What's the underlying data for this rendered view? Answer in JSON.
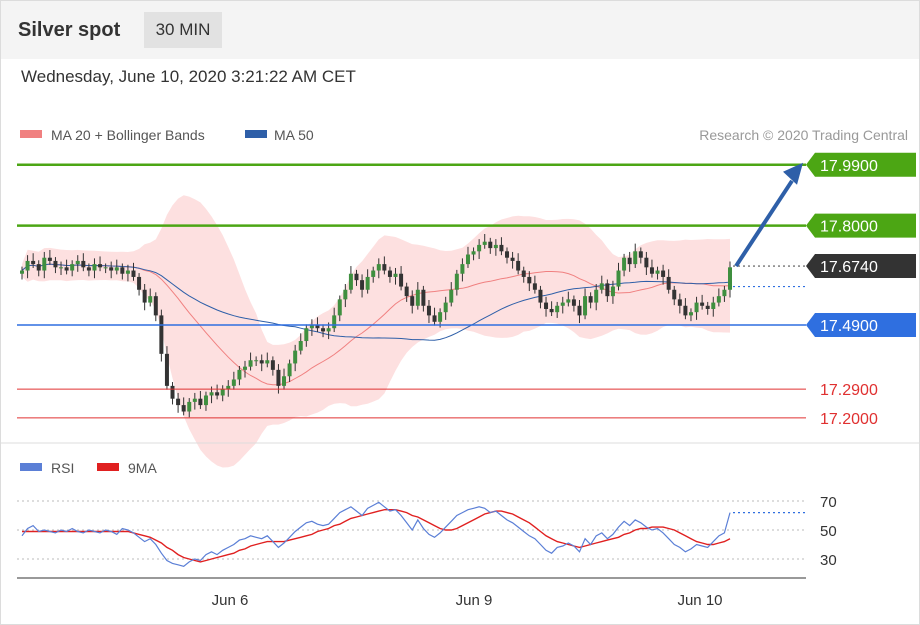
{
  "header": {
    "title": "Silver spot",
    "timeframe": "30 MIN",
    "datetime": "Wednesday, June 10, 2020 3:21:22 AM CET"
  },
  "legend": {
    "ma20": "MA 20 + Bollinger Bands",
    "ma50": "MA 50",
    "copyright": "Research © 2020 Trading Central",
    "ma20_color": "#f08080",
    "ma50_color": "#2e5fa8"
  },
  "rsi_legend": {
    "rsi": "RSI",
    "ma9": "9MA",
    "rsi_color": "#5b7fd6",
    "ma9_color": "#e02020"
  },
  "chart_data": [
    {
      "type": "candlestick",
      "title": "Silver spot",
      "ylim": [
        17.17,
        17.98
      ],
      "levels": [
        {
          "value": 17.99,
          "label": "17.9900",
          "color": "#4ca614",
          "kind": "resistance"
        },
        {
          "value": 17.8,
          "label": "17.8000",
          "color": "#4ca614",
          "kind": "resistance"
        },
        {
          "value": 17.674,
          "label": "17.6740",
          "color": "#333333",
          "kind": "current"
        },
        {
          "value": 17.49,
          "label": "17.4900",
          "color": "#2f6fe0",
          "kind": "pivot"
        },
        {
          "value": 17.29,
          "label": "17.2900",
          "color": "#e03030",
          "kind": "support"
        },
        {
          "value": 17.2,
          "label": "17.2000",
          "color": "#e03030",
          "kind": "support"
        }
      ],
      "projection": {
        "from": 17.674,
        "to": 17.99
      },
      "x_tick_labels": [
        "Jun 6",
        "Jun 9",
        "Jun 10"
      ],
      "close": [
        17.66,
        17.69,
        17.68,
        17.66,
        17.7,
        17.69,
        17.67,
        17.67,
        17.66,
        17.68,
        17.69,
        17.67,
        17.66,
        17.68,
        17.67,
        17.67,
        17.66,
        17.67,
        17.65,
        17.66,
        17.64,
        17.6,
        17.56,
        17.58,
        17.52,
        17.4,
        17.3,
        17.26,
        17.24,
        17.22,
        17.25,
        17.26,
        17.24,
        17.27,
        17.28,
        17.27,
        17.29,
        17.3,
        17.32,
        17.35,
        17.36,
        17.38,
        17.38,
        17.37,
        17.38,
        17.35,
        17.3,
        17.33,
        17.37,
        17.41,
        17.44,
        17.48,
        17.49,
        17.48,
        17.47,
        17.48,
        17.52,
        17.57,
        17.6,
        17.65,
        17.63,
        17.6,
        17.64,
        17.66,
        17.68,
        17.66,
        17.64,
        17.65,
        17.61,
        17.58,
        17.55,
        17.6,
        17.55,
        17.52,
        17.5,
        17.53,
        17.56,
        17.6,
        17.65,
        17.68,
        17.71,
        17.72,
        17.74,
        17.75,
        17.73,
        17.74,
        17.72,
        17.7,
        17.69,
        17.66,
        17.64,
        17.62,
        17.6,
        17.56,
        17.54,
        17.53,
        17.55,
        17.56,
        17.57,
        17.55,
        17.52,
        17.58,
        17.56,
        17.6,
        17.62,
        17.58,
        17.61,
        17.66,
        17.7,
        17.68,
        17.72,
        17.7,
        17.67,
        17.65,
        17.66,
        17.64,
        17.6,
        17.57,
        17.55,
        17.52,
        17.53,
        17.56,
        17.55,
        17.54,
        17.56,
        17.58,
        17.6,
        17.67
      ],
      "rsi": {
        "ylim": [
          20,
          80
        ],
        "ticks": [
          70,
          50,
          30
        ],
        "latest": 62,
        "rsi_values": [
          46,
          51,
          53,
          49,
          50,
          49,
          48,
          50,
          49,
          51,
          49,
          48,
          50,
          49,
          48,
          50,
          49,
          47,
          51,
          50,
          48,
          45,
          42,
          44,
          40,
          34,
          29,
          27,
          26,
          25,
          28,
          30,
          29,
          33,
          35,
          33,
          36,
          38,
          40,
          43,
          44,
          46,
          45,
          44,
          46,
          42,
          38,
          41,
          45,
          49,
          52,
          55,
          56,
          54,
          53,
          54,
          58,
          62,
          64,
          66,
          63,
          60,
          65,
          67,
          69,
          66,
          63,
          64,
          60,
          55,
          50,
          57,
          51,
          47,
          45,
          48,
          52,
          56,
          60,
          62,
          64,
          65,
          66,
          65,
          62,
          63,
          60,
          57,
          55,
          52,
          49,
          46,
          44,
          40,
          36,
          34,
          38,
          39,
          41,
          39,
          35,
          44,
          40,
          46,
          48,
          44,
          47,
          52,
          56,
          53,
          57,
          55,
          52,
          50,
          51,
          48,
          44,
          40,
          38,
          35,
          37,
          40,
          39,
          38,
          42,
          46,
          48,
          62
        ],
        "ma9_values": [
          49,
          49,
          49,
          49,
          49,
          49,
          49,
          49,
          49,
          49,
          49,
          49,
          49,
          49,
          49,
          49,
          49,
          49,
          49,
          49,
          48,
          47,
          46,
          45,
          43,
          41,
          38,
          36,
          33,
          31,
          30,
          29,
          28,
          29,
          30,
          31,
          32,
          33,
          34,
          36,
          37,
          39,
          40,
          41,
          42,
          42,
          42,
          42,
          43,
          44,
          45,
          46,
          47,
          49,
          50,
          51,
          53,
          54,
          56,
          58,
          59,
          60,
          61,
          62,
          63,
          64,
          64,
          64,
          63,
          62,
          60,
          59,
          57,
          55,
          53,
          51,
          50,
          50,
          51,
          53,
          55,
          57,
          59,
          61,
          62,
          63,
          63,
          62,
          61,
          59,
          57,
          55,
          52,
          49,
          46,
          44,
          42,
          41,
          40,
          39,
          38,
          39,
          40,
          41,
          42,
          43,
          44,
          45,
          47,
          48,
          50,
          51,
          51,
          52,
          52,
          52,
          51,
          50,
          48,
          46,
          44,
          42,
          41,
          40,
          40,
          41,
          42,
          44
        ]
      }
    }
  ]
}
